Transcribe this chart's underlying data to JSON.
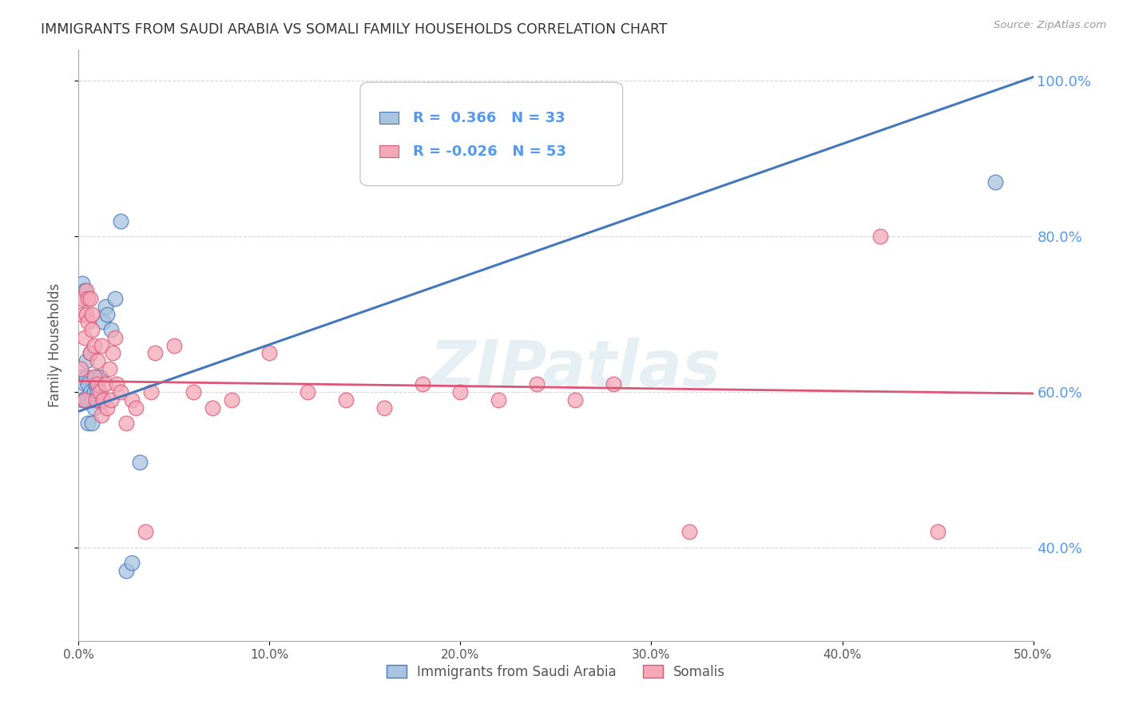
{
  "title": "IMMIGRANTS FROM SAUDI ARABIA VS SOMALI FAMILY HOUSEHOLDS CORRELATION CHART",
  "source": "Source: ZipAtlas.com",
  "ylabel": "Family Households",
  "x_min": 0.0,
  "x_max": 0.5,
  "y_min": 0.28,
  "y_max": 1.04,
  "right_ytick_labels": [
    "40.0%",
    "60.0%",
    "80.0%",
    "100.0%"
  ],
  "right_ytick_values": [
    0.4,
    0.6,
    0.8,
    1.0
  ],
  "xtick_labels": [
    "0.0%",
    "10.0%",
    "20.0%",
    "30.0%",
    "40.0%",
    "50.0%"
  ],
  "xtick_values": [
    0.0,
    0.1,
    0.2,
    0.3,
    0.4,
    0.5
  ],
  "legend_r_blue": "R =  0.366",
  "legend_n_blue": "N = 33",
  "legend_r_pink": "R = -0.026",
  "legend_n_pink": "N = 53",
  "legend_label_blue": "Immigrants from Saudi Arabia",
  "legend_label_pink": "Somalis",
  "blue_color": "#A8C4E0",
  "pink_color": "#F4A8B8",
  "trend_blue_color": "#4477BB",
  "trend_pink_color": "#DD5577",
  "right_axis_label_color": "#5599EE",
  "grid_color": "#CCCCCC",
  "background_color": "#FFFFFF",
  "watermark_text": "ZIPatlas",
  "saudi_x": [
    0.001,
    0.002,
    0.002,
    0.003,
    0.003,
    0.003,
    0.004,
    0.004,
    0.005,
    0.005,
    0.005,
    0.006,
    0.006,
    0.007,
    0.007,
    0.008,
    0.008,
    0.009,
    0.009,
    0.01,
    0.01,
    0.011,
    0.012,
    0.013,
    0.014,
    0.015,
    0.017,
    0.019,
    0.022,
    0.025,
    0.028,
    0.032,
    0.48
  ],
  "saudi_y": [
    0.62,
    0.74,
    0.59,
    0.73,
    0.61,
    0.59,
    0.64,
    0.62,
    0.61,
    0.59,
    0.56,
    0.65,
    0.6,
    0.59,
    0.56,
    0.6,
    0.58,
    0.62,
    0.61,
    0.6,
    0.59,
    0.62,
    0.59,
    0.69,
    0.71,
    0.7,
    0.68,
    0.72,
    0.82,
    0.37,
    0.38,
    0.51,
    0.87
  ],
  "somali_x": [
    0.001,
    0.002,
    0.002,
    0.003,
    0.003,
    0.004,
    0.004,
    0.005,
    0.005,
    0.006,
    0.006,
    0.007,
    0.007,
    0.008,
    0.008,
    0.009,
    0.01,
    0.01,
    0.011,
    0.012,
    0.012,
    0.013,
    0.014,
    0.015,
    0.016,
    0.017,
    0.018,
    0.019,
    0.02,
    0.022,
    0.025,
    0.028,
    0.03,
    0.035,
    0.038,
    0.04,
    0.05,
    0.06,
    0.07,
    0.08,
    0.1,
    0.12,
    0.14,
    0.16,
    0.18,
    0.2,
    0.22,
    0.24,
    0.26,
    0.28,
    0.32,
    0.42,
    0.45
  ],
  "somali_y": [
    0.63,
    0.72,
    0.7,
    0.59,
    0.67,
    0.73,
    0.7,
    0.72,
    0.69,
    0.72,
    0.65,
    0.7,
    0.68,
    0.66,
    0.62,
    0.59,
    0.61,
    0.64,
    0.6,
    0.57,
    0.66,
    0.59,
    0.61,
    0.58,
    0.63,
    0.59,
    0.65,
    0.67,
    0.61,
    0.6,
    0.56,
    0.59,
    0.58,
    0.42,
    0.6,
    0.65,
    0.66,
    0.6,
    0.58,
    0.59,
    0.65,
    0.6,
    0.59,
    0.58,
    0.61,
    0.6,
    0.59,
    0.61,
    0.59,
    0.61,
    0.42,
    0.8,
    0.42
  ],
  "blue_trend_x": [
    0.0,
    0.5
  ],
  "blue_trend_y": [
    0.575,
    1.005
  ],
  "pink_trend_x": [
    0.0,
    0.5
  ],
  "pink_trend_y": [
    0.614,
    0.598
  ]
}
